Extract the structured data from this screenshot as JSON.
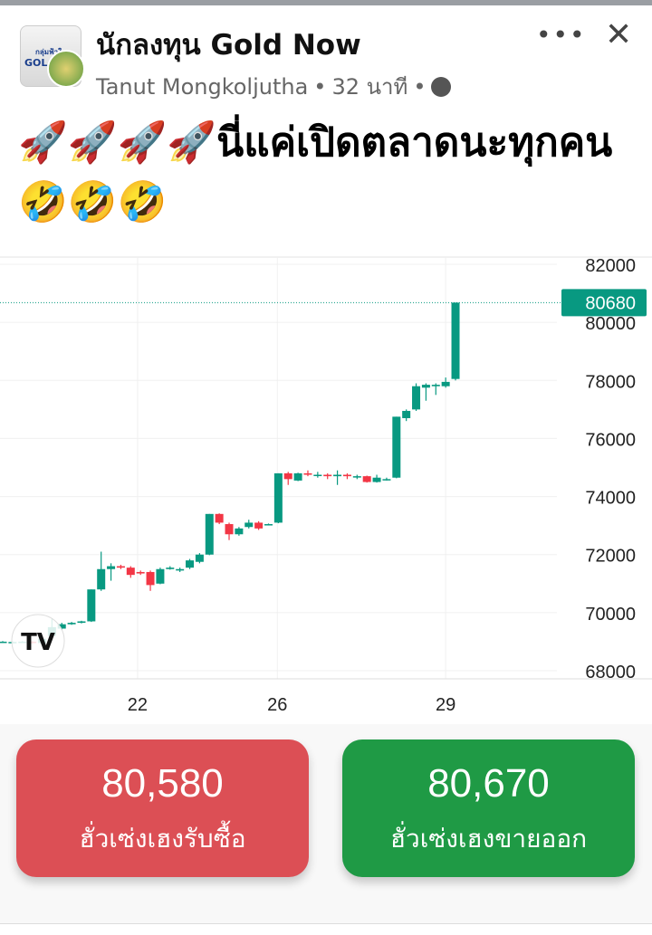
{
  "post": {
    "group_name": "นักลงทุน Gold Now",
    "author": "Tanut Mongkoljutha",
    "time": "32 นาที",
    "separator": "•",
    "privacy_icon": "globe-icon",
    "more_icon": "more-icon",
    "close_icon": "close-icon",
    "avatar_text_1": "กลุ่มฟ้าใส",
    "avatar_text_2": "GOL",
    "text": "🚀🚀🚀🚀นี่แค่เปิดตลาดนะทุกคน🤣🤣🤣"
  },
  "chart_data": {
    "type": "candlestick",
    "ylim": [
      68000,
      82000
    ],
    "y_ticks": [
      "82000",
      "80000",
      "78000",
      "76000",
      "74000",
      "72000",
      "70000",
      "68000"
    ],
    "x_ticks": [
      {
        "label": "22",
        "index": 13.7
      },
      {
        "label": "26",
        "index": 27.9
      },
      {
        "label": "29",
        "index": 45
      }
    ],
    "last_price": "80680",
    "colors": {
      "up": "#089981",
      "down": "#f23645",
      "price_tag": "#089981"
    },
    "grid": true,
    "candles": [
      [
        69000,
        69020,
        68980,
        69000
      ],
      [
        68990,
        69010,
        68970,
        68990
      ],
      [
        69000,
        69020,
        68980,
        69000
      ],
      [
        69000,
        69020,
        68930,
        68950
      ],
      [
        68950,
        69150,
        68930,
        69100
      ],
      [
        69200,
        69800,
        69150,
        69500
      ],
      [
        69450,
        69650,
        69400,
        69600
      ],
      [
        69600,
        69680,
        69580,
        69650
      ],
      [
        69650,
        69720,
        69630,
        69700
      ],
      [
        69700,
        70800,
        69680,
        70800
      ],
      [
        70800,
        72100,
        70750,
        71500
      ],
      [
        71500,
        71700,
        71100,
        71600
      ],
      [
        71600,
        71650,
        71500,
        71550
      ],
      [
        71550,
        71600,
        71200,
        71300
      ],
      [
        71400,
        71450,
        71300,
        71350
      ],
      [
        71400,
        71450,
        70750,
        70950
      ],
      [
        71000,
        71550,
        70980,
        71500
      ],
      [
        71500,
        71600,
        71480,
        71550
      ],
      [
        71450,
        71550,
        71400,
        71500
      ],
      [
        71550,
        71850,
        71500,
        71800
      ],
      [
        71750,
        72050,
        71700,
        72000
      ],
      [
        72000,
        73400,
        71980,
        73400
      ],
      [
        73400,
        73420,
        73050,
        73100
      ],
      [
        73050,
        73100,
        72500,
        72700
      ],
      [
        72700,
        72950,
        72650,
        72900
      ],
      [
        72950,
        73200,
        72900,
        73100
      ],
      [
        73100,
        73150,
        72850,
        72900
      ],
      [
        73050,
        73070,
        73030,
        73050
      ],
      [
        73100,
        74800,
        73080,
        74800
      ],
      [
        74800,
        74850,
        74400,
        74600
      ],
      [
        74550,
        74820,
        74530,
        74800
      ],
      [
        74800,
        74900,
        74700,
        74750
      ],
      [
        74750,
        74850,
        74650,
        74750
      ],
      [
        74750,
        74800,
        74600,
        74700
      ],
      [
        74700,
        74900,
        74400,
        74750
      ],
      [
        74750,
        74800,
        74600,
        74700
      ],
      [
        74700,
        74750,
        74600,
        74700
      ],
      [
        74700,
        74720,
        74480,
        74500
      ],
      [
        74500,
        74750,
        74480,
        74650
      ],
      [
        74600,
        74650,
        74550,
        74600
      ],
      [
        74650,
        76750,
        74630,
        76750
      ],
      [
        76700,
        77000,
        76600,
        76950
      ],
      [
        77000,
        77900,
        76950,
        77800
      ],
      [
        77750,
        77900,
        77300,
        77850
      ],
      [
        77800,
        77900,
        77500,
        77850
      ],
      [
        77800,
        78100,
        77750,
        77950
      ],
      [
        78050,
        80680,
        78000,
        80680
      ]
    ]
  },
  "quotes": {
    "buy": {
      "value": "80,580",
      "label": "ฮั่วเซ่งเฮงรับซื้อ",
      "color": "#dc4f55"
    },
    "sell": {
      "value": "80,670",
      "label": "ฮั่วเซ่งเฮงขายออก",
      "color": "#1f9a45"
    }
  }
}
